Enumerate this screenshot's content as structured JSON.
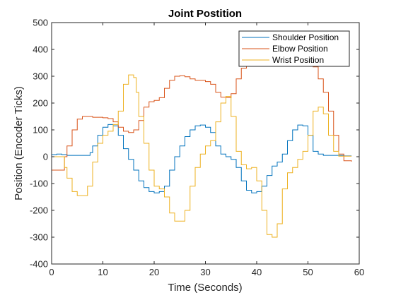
{
  "chart_data": {
    "type": "line",
    "title": "Joint Postition",
    "xlabel": "Time (Seconds)",
    "ylabel": "Position (Encoder Ticks)",
    "xlim": [
      0,
      60
    ],
    "ylim": [
      -400,
      500
    ],
    "xticks": [
      0,
      10,
      20,
      30,
      40,
      50,
      60
    ],
    "yticks": [
      -400,
      -300,
      -200,
      -100,
      0,
      100,
      200,
      300,
      400,
      500
    ],
    "grid": false,
    "legend_position": "top-right",
    "series": [
      {
        "name": "Shoulder Position",
        "color": "#0072BD",
        "points": [
          [
            0,
            8
          ],
          [
            1,
            10
          ],
          [
            2,
            8
          ],
          [
            3,
            5
          ],
          [
            5,
            5
          ],
          [
            7,
            5
          ],
          [
            7.5,
            15
          ],
          [
            8,
            40
          ],
          [
            9,
            80
          ],
          [
            10,
            110
          ],
          [
            11,
            120
          ],
          [
            12,
            115
          ],
          [
            13,
            80
          ],
          [
            14,
            30
          ],
          [
            15,
            -10
          ],
          [
            16,
            -50
          ],
          [
            17,
            -90
          ],
          [
            18,
            -115
          ],
          [
            19,
            -130
          ],
          [
            20,
            -135
          ],
          [
            21,
            -130
          ],
          [
            22,
            -110
          ],
          [
            23,
            -50
          ],
          [
            24,
            0
          ],
          [
            25,
            40
          ],
          [
            26,
            75
          ],
          [
            27,
            100
          ],
          [
            28,
            115
          ],
          [
            29,
            118
          ],
          [
            30,
            110
          ],
          [
            31,
            90
          ],
          [
            32,
            40
          ],
          [
            33,
            10
          ],
          [
            34,
            0
          ],
          [
            35,
            -10
          ],
          [
            36,
            -40
          ],
          [
            37,
            -90
          ],
          [
            38,
            -125
          ],
          [
            39,
            -135
          ],
          [
            40,
            -130
          ],
          [
            41,
            -110
          ],
          [
            42,
            -70
          ],
          [
            43,
            -35
          ],
          [
            44,
            -20
          ],
          [
            45,
            10
          ],
          [
            46,
            60
          ],
          [
            47,
            100
          ],
          [
            48,
            118
          ],
          [
            49,
            115
          ],
          [
            50,
            80
          ],
          [
            51,
            20
          ],
          [
            52,
            10
          ],
          [
            53,
            5
          ],
          [
            56,
            5
          ],
          [
            57,
            3
          ],
          [
            58.5,
            3
          ]
        ]
      },
      {
        "name": "Elbow Position",
        "color": "#D95319",
        "points": [
          [
            0,
            -50
          ],
          [
            2,
            -50
          ],
          [
            2.5,
            0
          ],
          [
            3,
            40
          ],
          [
            4,
            100
          ],
          [
            5,
            140
          ],
          [
            6,
            150
          ],
          [
            8,
            147
          ],
          [
            10,
            145
          ],
          [
            11,
            142
          ],
          [
            12,
            130
          ],
          [
            13,
            110
          ],
          [
            14,
            95
          ],
          [
            15,
            90
          ],
          [
            16,
            100
          ],
          [
            17,
            135
          ],
          [
            18,
            185
          ],
          [
            19,
            205
          ],
          [
            20,
            210
          ],
          [
            21,
            220
          ],
          [
            22,
            255
          ],
          [
            23,
            285
          ],
          [
            24,
            300
          ],
          [
            25,
            302
          ],
          [
            26,
            298
          ],
          [
            27,
            290
          ],
          [
            28,
            285
          ],
          [
            30,
            280
          ],
          [
            31,
            270
          ],
          [
            32,
            240
          ],
          [
            33,
            222
          ],
          [
            34,
            220
          ],
          [
            35,
            235
          ],
          [
            36,
            290
          ],
          [
            37,
            330
          ],
          [
            38,
            350
          ],
          [
            39,
            355
          ],
          [
            40,
            358
          ],
          [
            42,
            360
          ],
          [
            44,
            358
          ],
          [
            46,
            357
          ],
          [
            48,
            355
          ],
          [
            50,
            350
          ],
          [
            51,
            335
          ],
          [
            52,
            290
          ],
          [
            53,
            240
          ],
          [
            54,
            170
          ],
          [
            55,
            80
          ],
          [
            56,
            10
          ],
          [
            57,
            -15
          ],
          [
            58.5,
            -18
          ]
        ]
      },
      {
        "name": "Wrist Position",
        "color": "#EDB120",
        "points": [
          [
            0,
            0
          ],
          [
            2,
            0
          ],
          [
            2.5,
            -40
          ],
          [
            3,
            -80
          ],
          [
            4,
            -130
          ],
          [
            5,
            -145
          ],
          [
            6,
            -145
          ],
          [
            7,
            -110
          ],
          [
            8,
            -20
          ],
          [
            9,
            50
          ],
          [
            10,
            80
          ],
          [
            11,
            95
          ],
          [
            12,
            120
          ],
          [
            13,
            170
          ],
          [
            14,
            270
          ],
          [
            15,
            305
          ],
          [
            16,
            295
          ],
          [
            16.5,
            240
          ],
          [
            17,
            150
          ],
          [
            18,
            50
          ],
          [
            19,
            -50
          ],
          [
            20,
            -110
          ],
          [
            21,
            -120
          ],
          [
            22,
            -150
          ],
          [
            23,
            -210
          ],
          [
            24,
            -240
          ],
          [
            25,
            -240
          ],
          [
            26,
            -200
          ],
          [
            27,
            -110
          ],
          [
            28,
            -40
          ],
          [
            29,
            10
          ],
          [
            30,
            40
          ],
          [
            31,
            60
          ],
          [
            32,
            130
          ],
          [
            33,
            200
          ],
          [
            34,
            225
          ],
          [
            35,
            150
          ],
          [
            36,
            20
          ],
          [
            37,
            -30
          ],
          [
            38,
            -45
          ],
          [
            39,
            -40
          ],
          [
            40,
            -90
          ],
          [
            41,
            -200
          ],
          [
            42,
            -290
          ],
          [
            43,
            -300
          ],
          [
            44,
            -250
          ],
          [
            45,
            -120
          ],
          [
            46,
            -60
          ],
          [
            47,
            -40
          ],
          [
            48,
            -10
          ],
          [
            49,
            20
          ],
          [
            50,
            80
          ],
          [
            51,
            170
          ],
          [
            52,
            185
          ],
          [
            53,
            160
          ],
          [
            54,
            80
          ],
          [
            55,
            20
          ],
          [
            56,
            2
          ],
          [
            58.5,
            2
          ]
        ]
      }
    ]
  }
}
